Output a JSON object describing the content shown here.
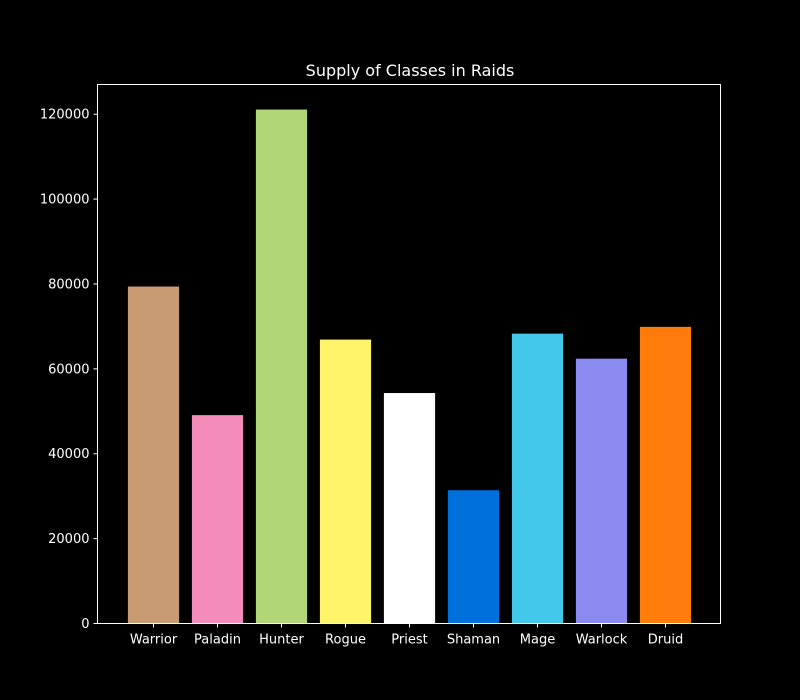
{
  "chart_data": {
    "type": "bar",
    "title": "Supply of Classes in Raids",
    "xlabel": "",
    "ylabel": "",
    "categories": [
      "Warrior",
      "Paladin",
      "Hunter",
      "Rogue",
      "Priest",
      "Shaman",
      "Mage",
      "Warlock",
      "Druid"
    ],
    "values": [
      79400,
      49100,
      121100,
      66900,
      54300,
      31400,
      68300,
      62400,
      69900
    ],
    "bar_colors": [
      "#C89B72",
      "#F48CBA",
      "#B0D677",
      "#FFF36A",
      "#FFFFFF",
      "#0070DD",
      "#43C7EB",
      "#8B8AF0",
      "#FF7C0A"
    ],
    "ylim": [
      0,
      127000
    ],
    "yticks": [
      0,
      20000,
      40000,
      60000,
      80000,
      100000,
      120000
    ],
    "ytick_labels": [
      "0",
      "20000",
      "40000",
      "60000",
      "80000",
      "100000",
      "120000"
    ],
    "grid": false,
    "legend": "none",
    "background_color": "#000000",
    "text_color": "#ffffff"
  }
}
